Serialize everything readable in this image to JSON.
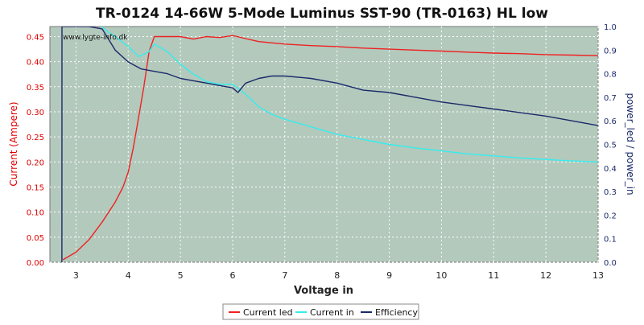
{
  "chart_data": {
    "type": "line",
    "title": "TR-0124 14-66W 5-Mode Luminus SST-90 (TR-0163) HL low",
    "watermark": "www.lygte-info.dk",
    "xlabel": "Voltage in",
    "ylabel_left": "Current (Ampere)",
    "ylabel_right": "power_led / power_in",
    "xlim": [
      2.5,
      13.0
    ],
    "ylim_left": [
      0.0,
      0.47
    ],
    "ylim_right": [
      0.0,
      1.0
    ],
    "x_ticks": [
      "3",
      "4",
      "5",
      "6",
      "7",
      "8",
      "9",
      "10",
      "11",
      "12",
      "13"
    ],
    "y_ticks_left": [
      "0.00",
      "0.05",
      "0.10",
      "0.15",
      "0.20",
      "0.25",
      "0.30",
      "0.35",
      "0.40",
      "0.45"
    ],
    "y_ticks_right": [
      "0.0",
      "0.1",
      "0.2",
      "0.3",
      "0.4",
      "0.5",
      "0.6",
      "0.7",
      "0.8",
      "0.9",
      "1.0"
    ],
    "grid": true,
    "legend_position": "bottom-center",
    "colors": {
      "plot_bg": "#b3c9bc",
      "current_led": "#ee2222",
      "current_in": "#33eeee",
      "efficiency": "#1a2a6a",
      "left_axis": "#dd0000",
      "right_axis": "#1a2a6a"
    },
    "series": [
      {
        "name": "Current led",
        "axis": "left",
        "x": [
          2.75,
          3.0,
          3.25,
          3.5,
          3.75,
          3.9,
          4.0,
          4.1,
          4.2,
          4.3,
          4.4,
          4.5,
          4.75,
          5.0,
          5.25,
          5.5,
          5.75,
          6.0,
          6.25,
          6.5,
          7.0,
          7.5,
          8.0,
          8.5,
          9.0,
          9.5,
          10.0,
          10.5,
          11.0,
          11.5,
          12.0,
          12.5,
          13.0
        ],
        "y": [
          0.005,
          0.02,
          0.045,
          0.08,
          0.12,
          0.15,
          0.18,
          0.23,
          0.29,
          0.35,
          0.42,
          0.45,
          0.45,
          0.45,
          0.445,
          0.45,
          0.448,
          0.452,
          0.446,
          0.44,
          0.435,
          0.432,
          0.43,
          0.427,
          0.425,
          0.423,
          0.421,
          0.419,
          0.417,
          0.416,
          0.414,
          0.413,
          0.412
        ]
      },
      {
        "name": "Current in",
        "axis": "left",
        "x": [
          3.5,
          3.6,
          3.75,
          4.0,
          4.2,
          4.4,
          4.5,
          4.75,
          5.0,
          5.25,
          5.5,
          5.75,
          6.0,
          6.25,
          6.5,
          6.75,
          7.0,
          7.5,
          8.0,
          8.5,
          9.0,
          9.5,
          10.0,
          10.5,
          11.0,
          11.5,
          12.0,
          12.5,
          13.0
        ],
        "y": [
          0.47,
          0.46,
          0.45,
          0.43,
          0.41,
          0.42,
          0.435,
          0.42,
          0.395,
          0.375,
          0.36,
          0.355,
          0.355,
          0.335,
          0.31,
          0.295,
          0.285,
          0.27,
          0.255,
          0.245,
          0.235,
          0.228,
          0.222,
          0.216,
          0.212,
          0.208,
          0.205,
          0.202,
          0.2
        ]
      },
      {
        "name": "Efficiency",
        "axis": "right",
        "x": [
          2.73,
          2.731,
          3.0,
          3.25,
          3.5,
          3.75,
          4.0,
          4.25,
          4.5,
          4.75,
          5.0,
          5.25,
          5.5,
          5.75,
          6.0,
          6.1,
          6.25,
          6.5,
          6.75,
          7.0,
          7.5,
          8.0,
          8.5,
          9.0,
          9.5,
          10.0,
          10.5,
          11.0,
          11.5,
          12.0,
          12.5,
          13.0
        ],
        "y": [
          0.0,
          1.0,
          1.0,
          1.0,
          0.99,
          0.9,
          0.85,
          0.82,
          0.81,
          0.8,
          0.78,
          0.77,
          0.76,
          0.75,
          0.74,
          0.72,
          0.76,
          0.78,
          0.79,
          0.79,
          0.78,
          0.76,
          0.73,
          0.72,
          0.7,
          0.68,
          0.665,
          0.65,
          0.635,
          0.62,
          0.6,
          0.58
        ]
      }
    ]
  }
}
